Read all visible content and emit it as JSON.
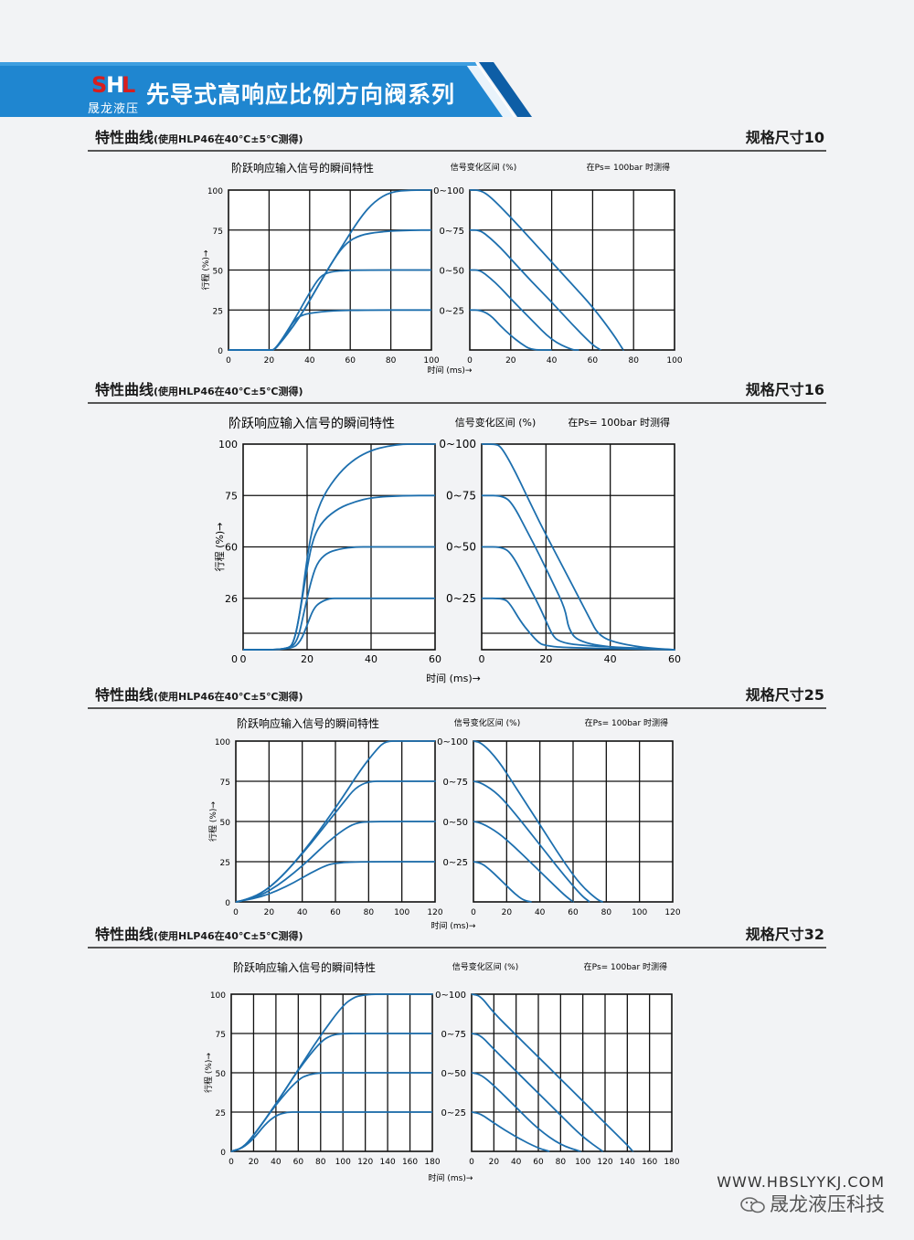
{
  "header": {
    "logo_letters": "SHL",
    "brand": "晟龙液压",
    "title": "先导式高响应比例方向阀系列"
  },
  "sections": [
    {
      "title": "特性曲线",
      "condition": "(使用HLP46在40℃±5℃测得)",
      "size": "规格尺寸10",
      "chart_data": {
        "type": "line",
        "title": "阶跃响应输入信号的瞬间特性",
        "ylabel": "行程 (%)→",
        "xlabel": "时间 (ms)→",
        "right_title": "信号变化区间 (%)",
        "right_note": "在Ps= 100bar 时测得",
        "grid": true,
        "left_xticks": [
          "0",
          "20",
          "40",
          "60",
          "80",
          "100"
        ],
        "left_yticks": [
          "0",
          "25",
          "50",
          "75",
          "100"
        ],
        "right_xticks": [
          "0",
          "20",
          "40",
          "60",
          "80",
          "100"
        ],
        "signal_ranges": [
          "0~100",
          "0~75",
          "0~50",
          "0~25"
        ],
        "xlim": [
          0,
          100
        ],
        "ylim": [
          0,
          100
        ],
        "step_up": [
          {
            "name": "0~100",
            "x": [
              0,
              20,
              23,
              35,
              45,
              55,
              65,
              72,
              80,
              90,
              100
            ],
            "y": [
              0,
              0,
              0,
              20,
              42,
              63,
              83,
              93,
              99,
              100,
              100
            ]
          },
          {
            "name": "0~75",
            "x": [
              0,
              20,
              23,
              35,
              45,
              52,
              58,
              65,
              75,
              90,
              100
            ],
            "y": [
              0,
              0,
              0,
              20,
              42,
              57,
              67,
              72,
              74,
              75,
              75
            ]
          },
          {
            "name": "0~50",
            "x": [
              0,
              20,
              23,
              33,
              40,
              45,
              50,
              60,
              100
            ],
            "y": [
              0,
              0,
              0,
              20,
              36,
              46,
              49,
              50,
              50
            ]
          },
          {
            "name": "0~25",
            "x": [
              0,
              20,
              23,
              28,
              32,
              36,
              45,
              60,
              100
            ],
            "y": [
              0,
              0,
              0,
              9,
              18,
              22,
              24,
              25,
              25
            ]
          }
        ],
        "step_down": [
          {
            "name": "0~100",
            "x": [
              0,
              5,
              10,
              20,
              30,
              40,
              50,
              60,
              70,
              75
            ],
            "y": [
              100,
              100,
              96,
              83,
              69,
              55,
              41,
              27,
              10,
              0
            ]
          },
          {
            "name": "0~75",
            "x": [
              0,
              5,
              10,
              15,
              20,
              30,
              40,
              50,
              60,
              64
            ],
            "y": [
              75,
              75,
              70,
              64,
              57,
              43,
              30,
              16,
              3,
              0
            ]
          },
          {
            "name": "0~50",
            "x": [
              0,
              5,
              10,
              15,
              20,
              30,
              40,
              50,
              53
            ],
            "y": [
              50,
              50,
              45,
              39,
              32,
              19,
              6,
              0,
              0
            ]
          },
          {
            "name": "0~25",
            "x": [
              0,
              5,
              10,
              15,
              20,
              25,
              30,
              40
            ],
            "y": [
              25,
              25,
              22,
              15,
              9,
              4,
              0,
              0
            ]
          }
        ]
      }
    },
    {
      "title": "特性曲线",
      "condition": "(使用HLP46在40℃±5℃测得)",
      "size": "规格尺寸16",
      "chart_data": {
        "type": "line",
        "title": "阶跃响应输入信号的瞬间特性",
        "ylabel": "行程 (%)→",
        "xlabel": "时间 (ms)→",
        "right_title": "信号变化区间 (%)",
        "right_note": "在Ps= 100bar 时测得",
        "grid": true,
        "left_xticks": [
          "0",
          "20",
          "40",
          "60"
        ],
        "left_yticks": [
          "26",
          "60",
          "75",
          "100"
        ],
        "right_xticks": [
          "0",
          "20",
          "40",
          "60"
        ],
        "signal_ranges": [
          "0~100",
          "0~75",
          "0~50",
          "0~25"
        ],
        "xlim": [
          0,
          60
        ],
        "ylim": [
          0,
          100
        ],
        "step_up": [
          {
            "name": "0~100",
            "x": [
              0,
              14,
              16,
              18,
              20,
              22,
              25,
              30,
              35,
              40,
              45,
              50,
              55,
              60
            ],
            "y": [
              0,
              0,
              4,
              20,
              45,
              62,
              75,
              86,
              93,
              97,
              99,
              100,
              100,
              100
            ]
          },
          {
            "name": "0~75",
            "x": [
              0,
              14,
              16,
              18,
              20,
              22,
              25,
              30,
              35,
              40,
              50,
              60
            ],
            "y": [
              0,
              0,
              4,
              20,
              40,
              55,
              63,
              69,
              72,
              74,
              75,
              75
            ]
          },
          {
            "name": "0~50",
            "x": [
              0,
              14,
              17,
              19,
              21,
              23,
              26,
              30,
              35,
              40,
              50,
              60
            ],
            "y": [
              0,
              0,
              4,
              18,
              32,
              42,
              47,
              49,
              50,
              50,
              50,
              50
            ]
          },
          {
            "name": "0~25",
            "x": [
              0,
              15,
              18,
              20,
              22,
              24,
              27,
              30,
              40,
              60
            ],
            "y": [
              0,
              0,
              4,
              12,
              20,
              23,
              25,
              25,
              25,
              25
            ]
          }
        ],
        "step_down": [
          {
            "name": "0~100",
            "x": [
              0,
              4,
              6,
              10,
              14,
              18,
              22,
              26,
              30,
              34,
              36,
              40,
              50,
              60
            ],
            "y": [
              100,
              100,
              99,
              88,
              75,
              62,
              50,
              38,
              26,
              14,
              8,
              4,
              1,
              0
            ]
          },
          {
            "name": "0~75",
            "x": [
              0,
              7,
              10,
              14,
              18,
              22,
              26,
              27,
              30,
              40,
              60
            ],
            "y": [
              75,
              75,
              70,
              58,
              46,
              33,
              20,
              10,
              4,
              1,
              0
            ]
          },
          {
            "name": "0~50",
            "x": [
              0,
              7,
              10,
              14,
              18,
              20,
              22,
              24,
              30,
              60
            ],
            "y": [
              50,
              50,
              45,
              33,
              21,
              14,
              7,
              4,
              2,
              0
            ]
          },
          {
            "name": "0~25",
            "x": [
              0,
              7,
              9,
              12,
              15,
              18,
              20,
              25,
              60
            ],
            "y": [
              25,
              25,
              22,
              14,
              8,
              3,
              2,
              1,
              0
            ]
          }
        ]
      }
    },
    {
      "title": "特性曲线",
      "condition": "(使用HLP46在40℃±5℃测得)",
      "size": "规格尺寸25",
      "chart_data": {
        "type": "line",
        "title": "阶跃响应输入信号的瞬间特性",
        "ylabel": "行程 (%)→",
        "xlabel": "时间 (ms)→",
        "right_title": "信号变化区间 (%)",
        "right_note": "在Ps= 100bar 时测得",
        "grid": true,
        "left_xticks": [
          "0",
          "20",
          "40",
          "60",
          "80",
          "100",
          "120"
        ],
        "left_yticks": [
          "0",
          "25",
          "50",
          "75",
          "100"
        ],
        "right_xticks": [
          "0",
          "20",
          "40",
          "60",
          "80",
          "100",
          "120"
        ],
        "signal_ranges": [
          "0~100",
          "0~75",
          "0~50",
          "0~25"
        ],
        "xlim": [
          0,
          120
        ],
        "ylim": [
          0,
          100
        ],
        "step_up": [
          {
            "name": "0~100",
            "x": [
              0,
              5,
              15,
              25,
              35,
              45,
              55,
              65,
              75,
              85,
              90,
              100,
              120
            ],
            "y": [
              0,
              1,
              5,
              13,
              24,
              37,
              51,
              66,
              82,
              95,
              100,
              100,
              100
            ]
          },
          {
            "name": "0~75",
            "x": [
              0,
              5,
              15,
              25,
              35,
              45,
              55,
              65,
              72,
              80,
              90,
              120
            ],
            "y": [
              0,
              1,
              5,
              13,
              24,
              36,
              49,
              62,
              71,
              75,
              75,
              75
            ]
          },
          {
            "name": "0~50",
            "x": [
              0,
              5,
              15,
              25,
              35,
              45,
              55,
              65,
              72,
              80,
              120
            ],
            "y": [
              0,
              1,
              4,
              10,
              18,
              27,
              37,
              45,
              49,
              50,
              50
            ]
          },
          {
            "name": "0~25",
            "x": [
              0,
              5,
              15,
              25,
              35,
              45,
              55,
              60,
              70,
              120
            ],
            "y": [
              0,
              1,
              3,
              7,
              12,
              18,
              23,
              24,
              25,
              25
            ]
          }
        ],
        "step_down": [
          {
            "name": "0~100",
            "x": [
              0,
              5,
              15,
              25,
              35,
              45,
              55,
              65,
              75,
              78
            ],
            "y": [
              100,
              99,
              88,
              72,
              56,
              40,
              24,
              10,
              1,
              0
            ]
          },
          {
            "name": "0~75",
            "x": [
              0,
              5,
              15,
              25,
              35,
              45,
              55,
              65,
              70
            ],
            "y": [
              75,
              74,
              67,
              55,
              42,
              29,
              16,
              4,
              0
            ]
          },
          {
            "name": "0~50",
            "x": [
              0,
              5,
              15,
              25,
              35,
              45,
              55,
              60
            ],
            "y": [
              50,
              49,
              43,
              34,
              24,
              14,
              4,
              0
            ]
          },
          {
            "name": "0~25",
            "x": [
              0,
              5,
              10,
              15,
              20,
              25,
              30,
              35
            ],
            "y": [
              25,
              24,
              20,
              15,
              10,
              5,
              1,
              0
            ]
          }
        ]
      }
    },
    {
      "title": "特性曲线",
      "condition": "(使用HLP46在40℃±5℃测得)",
      "size": "规格尺寸32",
      "chart_data": {
        "type": "line",
        "title": "阶跃响应输入信号的瞬间特性",
        "ylabel": "行程 (%)→",
        "xlabel": "时间 (ms)→",
        "right_title": "信号变化区间 (%)",
        "right_note": "在Ps= 100bar 时测得",
        "grid": true,
        "left_xticks": [
          "0",
          "20",
          "40",
          "60",
          "80",
          "100",
          "120",
          "140",
          "160",
          "180"
        ],
        "left_yticks": [
          "0",
          "25",
          "50",
          "75",
          "100"
        ],
        "right_xticks": [
          "0",
          "20",
          "40",
          "60",
          "80",
          "100",
          "120",
          "140",
          "160",
          "180"
        ],
        "signal_ranges": [
          "0~100",
          "0~75",
          "0~50",
          "0~25"
        ],
        "xlim": [
          0,
          180
        ],
        "ylim": [
          0,
          100
        ],
        "step_up": [
          {
            "name": "0~100",
            "x": [
              0,
              10,
              20,
              40,
              60,
              80,
              100,
              110,
              115,
              125,
              140,
              180
            ],
            "y": [
              0,
              2,
              10,
              30,
              52,
              74,
              93,
              98,
              99,
              100,
              100,
              100
            ]
          },
          {
            "name": "0~75",
            "x": [
              0,
              10,
              20,
              40,
              60,
              80,
              90,
              100,
              120,
              180
            ],
            "y": [
              0,
              2,
              10,
              30,
              52,
              70,
              74,
              75,
              75,
              75
            ]
          },
          {
            "name": "0~50",
            "x": [
              0,
              10,
              20,
              40,
              60,
              70,
              80,
              100,
              180
            ],
            "y": [
              0,
              2,
              10,
              30,
              46,
              49,
              50,
              50,
              50
            ]
          },
          {
            "name": "0~25",
            "x": [
              0,
              10,
              20,
              30,
              40,
              50,
              60,
              80,
              180
            ],
            "y": [
              0,
              2,
              8,
              17,
              23,
              25,
              25,
              25,
              25
            ]
          }
        ],
        "step_down": [
          {
            "name": "0~100",
            "x": [
              0,
              8,
              20,
              40,
              60,
              80,
              100,
              120,
              140,
              145
            ],
            "y": [
              100,
              99,
              88,
              74,
              60,
              46,
              32,
              18,
              4,
              0
            ]
          },
          {
            "name": "0~75",
            "x": [
              0,
              8,
              20,
              40,
              60,
              80,
              100,
              118
            ],
            "y": [
              75,
              74,
              65,
              51,
              37,
              23,
              9,
              0
            ]
          },
          {
            "name": "0~50",
            "x": [
              0,
              8,
              20,
              40,
              60,
              80,
              98
            ],
            "y": [
              50,
              49,
              42,
              28,
              14,
              4,
              0
            ]
          },
          {
            "name": "0~25",
            "x": [
              0,
              8,
              20,
              40,
              60,
              70
            ],
            "y": [
              25,
              24,
              18,
              9,
              2,
              0
            ]
          }
        ]
      }
    }
  ],
  "footer": {
    "url": "WWW.HBSLYYKJ.COM",
    "wechat": "晟龙液压科技"
  },
  "colors": {
    "banner_blue": "#1f86d0",
    "banner_dark": "#0e5ea6",
    "curve_blue": "#1d6fae",
    "logo_red": "#d81e1e"
  }
}
